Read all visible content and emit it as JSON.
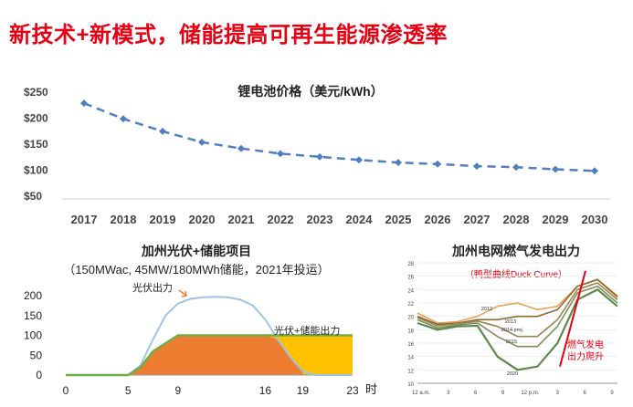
{
  "slide": {
    "title": "新技术+新模式，储能提高可再生能源渗透率"
  },
  "colors": {
    "title": "#e60012",
    "price_line": "#4f7fbf",
    "pv": "#9dc3e6",
    "storage_fill": "#ffc000",
    "direct_fill": "#ed7d31",
    "combined_line": "#70ad47"
  },
  "chart_data": [
    {
      "type": "line",
      "title": "锂电池价格（美元/kWh）",
      "categories": [
        "2017",
        "2018",
        "2019",
        "2020",
        "2021",
        "2022",
        "2023",
        "2024",
        "2025",
        "2026",
        "2027",
        "2028",
        "2029",
        "2030"
      ],
      "values": [
        227,
        197,
        173,
        152,
        140,
        130,
        124,
        118,
        113,
        110,
        106,
        104,
        100,
        97
      ],
      "ylim": [
        50,
        250
      ],
      "yticks": [
        50,
        100,
        150,
        200,
        250
      ],
      "ytick_labels": [
        "$50",
        "$100",
        "$150",
        "$200",
        "$250"
      ]
    },
    {
      "type": "area",
      "title": "加州光伏+储能项目",
      "subtitle": "（150MWac, 45MW/180MWh储能，2021年投运）",
      "xlabel": "时",
      "xlim": [
        0,
        23
      ],
      "ylim": [
        0,
        200
      ],
      "xticks": [
        0,
        5,
        9,
        16,
        19,
        23
      ],
      "yticks": [
        0,
        50,
        100,
        150,
        200
      ],
      "series": [
        {
          "name": "光伏出力",
          "x": [
            0,
            5,
            6,
            7,
            8,
            9,
            10,
            11,
            12,
            13,
            14,
            15,
            16,
            17,
            18,
            19,
            20,
            23
          ],
          "values": [
            0,
            0,
            25,
            90,
            150,
            180,
            192,
            196,
            197,
            196,
            190,
            175,
            140,
            90,
            45,
            10,
            0,
            0
          ]
        },
        {
          "name": "光伏+储能出力",
          "x": [
            0,
            5,
            6,
            7,
            8,
            9,
            16,
            19,
            23
          ],
          "values": [
            0,
            0,
            20,
            60,
            80,
            100,
            100,
            100,
            100
          ]
        }
      ],
      "annotations": [
        "光伏出力",
        "光伏+储能出力"
      ]
    },
    {
      "type": "line",
      "title": "加州电网燃气发电出力",
      "subtitle": "（鸭型曲线Duck Curve）",
      "xlabel": "",
      "ylim": [
        10,
        28
      ],
      "yticks": [
        10,
        12,
        14,
        16,
        18,
        20,
        22,
        24,
        26,
        28
      ],
      "xtick_labels": [
        "12 a.m.",
        "3",
        "6",
        "9",
        "12 p.m.",
        "3",
        "6",
        "9"
      ],
      "series": [
        {
          "name": "2012",
          "values": [
            20.5,
            19.0,
            19.2,
            20.0,
            21.5,
            22.0,
            21.0,
            21.5,
            24.5,
            25.5,
            22.8
          ]
        },
        {
          "name": "2013",
          "values": [
            20.0,
            18.8,
            19.0,
            19.5,
            19.5,
            20.0,
            20.0,
            21.0,
            24.5,
            25.5,
            23.0
          ]
        },
        {
          "name": "2014 proj.",
          "values": [
            19.8,
            18.6,
            18.9,
            19.3,
            18.5,
            17.0,
            17.0,
            19.5,
            24.0,
            25.0,
            22.5
          ]
        },
        {
          "name": "2015",
          "values": [
            19.5,
            18.3,
            18.7,
            19.0,
            17.0,
            15.5,
            15.5,
            18.5,
            23.5,
            24.5,
            22.0
          ]
        },
        {
          "name": "2020",
          "values": [
            19.0,
            18.0,
            18.5,
            18.6,
            14.0,
            12.0,
            12.5,
            16.0,
            22.5,
            24.0,
            21.5
          ]
        }
      ],
      "annotations": [
        "燃气发电出力爬升"
      ]
    }
  ]
}
